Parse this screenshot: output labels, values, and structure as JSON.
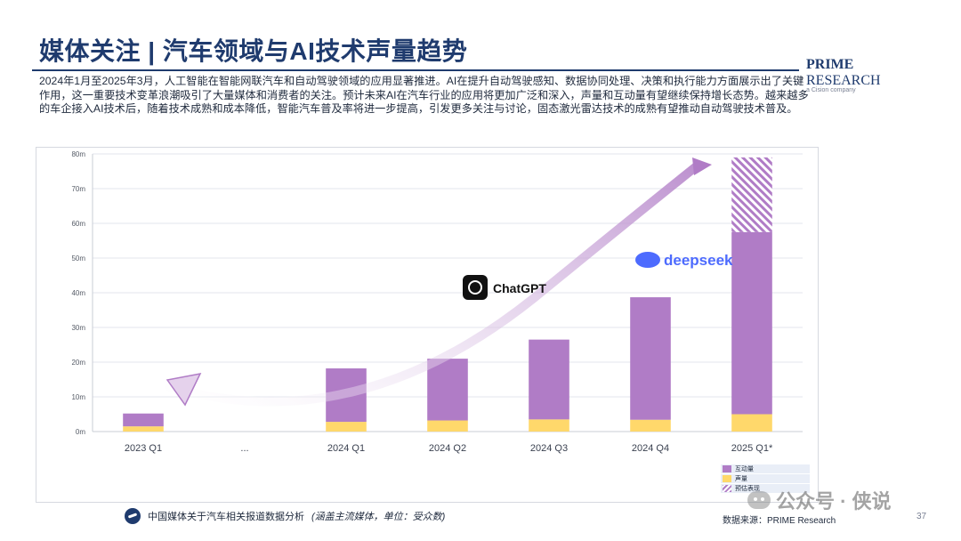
{
  "header": {
    "title": "媒体关注 | 汽车领域与AI技术声量趋势",
    "logo_main_bold": "PRIME",
    "logo_main_rest": " RESEARCH",
    "logo_sub": "a Cision company"
  },
  "description": "2024年1月至2025年3月，人工智能在智能网联汽车和自动驾驶领域的应用显著推进。AI在提升自动驾驶感知、数据协同处理、决策和执行能力方面展示出了关键作用，这一重要技术变革浪潮吸引了大量媒体和消费者的关注。预计未来AI在汽车行业的应用将更加广泛和深入，声量和互动量有望继续保持增长态势。越来越多的车企接入AI技术后，随着技术成熟和成本降低，智能汽车普及率将进一步提高，引发更多关注与讨论，固态激光雷达技术的成熟有望推动自动驾驶技术普及。",
  "chart_data": {
    "type": "bar",
    "stacked": true,
    "categories": [
      "2023 Q1",
      "...",
      "2024 Q1",
      "2024 Q2",
      "2024 Q3",
      "2024 Q4",
      "2025 Q1*"
    ],
    "series": [
      {
        "name": "声量",
        "color": "#ffd86b",
        "values": [
          1.5,
          null,
          2.8,
          3.2,
          3.5,
          3.4,
          5.0
        ]
      },
      {
        "name": "互动量",
        "color": "#b07cc6",
        "values": [
          3.7,
          null,
          15.4,
          17.8,
          23.0,
          35.3,
          52.5
        ]
      },
      {
        "name": "预估表现",
        "pattern": "hatch",
        "color": "#b07cc6",
        "values": [
          null,
          null,
          null,
          null,
          null,
          null,
          21.5
        ]
      }
    ],
    "y_ticks": [
      "0m",
      "10m",
      "20m",
      "30m",
      "40m",
      "50m",
      "60m",
      "70m",
      "80m"
    ],
    "ylim": [
      0,
      80
    ],
    "grid": "horizontal",
    "legend_position": "bottom-right",
    "annotations": [
      "ChatGPT",
      "deepseek"
    ]
  },
  "footer": {
    "left_text": "中国媒体关于汽车相关报道数据分析",
    "left_italic": "(涵盖主流媒体，单位：受众数)",
    "source": "数据来源：PRIME Research",
    "page": "37",
    "watermark": "公众号 · 侠说"
  }
}
